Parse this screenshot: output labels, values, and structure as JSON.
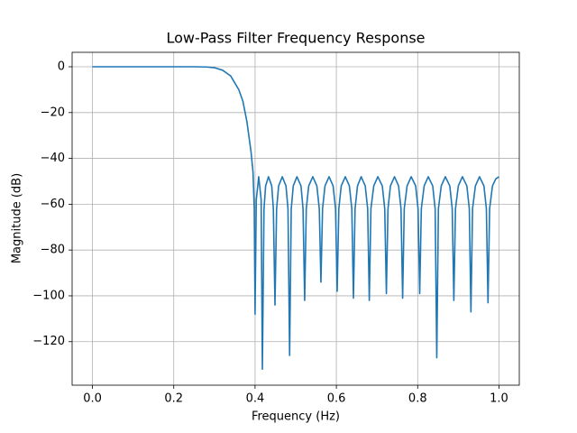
{
  "chart_data": {
    "type": "line",
    "title": "Low-Pass Filter Frequency Response",
    "xlabel": "Frequency (Hz)",
    "ylabel": "Magnitude (dB)",
    "x": [
      0,
      0.05,
      0.1,
      0.15,
      0.2,
      0.25,
      0.28,
      0.3,
      0.32,
      0.34,
      0.36,
      0.37,
      0.38,
      0.39,
      0.395,
      0.398,
      0.4,
      0.403,
      0.409,
      0.415,
      0.418,
      0.422,
      0.426,
      0.433,
      0.441,
      0.445,
      0.449,
      0.453,
      0.458,
      0.467,
      0.476,
      0.481,
      0.485,
      0.489,
      0.494,
      0.503,
      0.513,
      0.518,
      0.522,
      0.526,
      0.532,
      0.542,
      0.552,
      0.558,
      0.562,
      0.566,
      0.572,
      0.582,
      0.592,
      0.598,
      0.602,
      0.606,
      0.612,
      0.622,
      0.632,
      0.638,
      0.642,
      0.646,
      0.652,
      0.661,
      0.671,
      0.677,
      0.681,
      0.685,
      0.692,
      0.702,
      0.713,
      0.719,
      0.723,
      0.727,
      0.733,
      0.743,
      0.753,
      0.759,
      0.763,
      0.767,
      0.774,
      0.784,
      0.795,
      0.801,
      0.805,
      0.809,
      0.816,
      0.826,
      0.837,
      0.843,
      0.847,
      0.851,
      0.858,
      0.868,
      0.879,
      0.885,
      0.889,
      0.893,
      0.9,
      0.91,
      0.921,
      0.927,
      0.931,
      0.935,
      0.942,
      0.952,
      0.963,
      0.969,
      0.973,
      0.977,
      0.984,
      0.992,
      1.0
    ],
    "series": [
      {
        "color": "#1f77b4",
        "values": [
          0,
          0,
          0,
          0,
          0,
          0,
          -0.1,
          -0.4,
          -1.5,
          -4,
          -10,
          -15,
          -24,
          -37,
          -46,
          -62,
          -108,
          -58,
          -48,
          -58,
          -132,
          -62,
          -52,
          -48,
          -52,
          -62,
          -104,
          -62,
          -52,
          -48,
          -52,
          -62,
          -126,
          -62,
          -52,
          -48,
          -52,
          -62,
          -102,
          -62,
          -52,
          -48,
          -52,
          -62,
          -94,
          -62,
          -52,
          -48,
          -52,
          -62,
          -98,
          -62,
          -52,
          -48,
          -52,
          -62,
          -101,
          -62,
          -52,
          -48,
          -52,
          -62,
          -102,
          -62,
          -52,
          -48,
          -52,
          -62,
          -99,
          -62,
          -52,
          -48,
          -52,
          -62,
          -101,
          -62,
          -52,
          -48,
          -52,
          -62,
          -99,
          -62,
          -52,
          -48,
          -52,
          -62,
          -127,
          -62,
          -52,
          -48,
          -52,
          -62,
          -102,
          -62,
          -52,
          -48,
          -52,
          -62,
          -107,
          -62,
          -52,
          -48,
          -52,
          -62,
          -103,
          -62,
          -52,
          -49,
          -48
        ]
      }
    ],
    "xlim": [
      -0.05,
      1.05
    ],
    "xticks": [
      {
        "value": 0,
        "label": "0.0"
      },
      0.2,
      0.4,
      0.6,
      0.8,
      {
        "value": 1,
        "label": "1.0"
      }
    ],
    "ylim": [
      -139,
      6.3
    ],
    "yticks": [
      0,
      {
        "value": -20,
        "label": "−20"
      },
      {
        "value": -40,
        "label": "−40"
      },
      {
        "value": -60,
        "label": "−60"
      },
      {
        "value": -80,
        "label": "−80"
      },
      {
        "value": -100,
        "label": "−100"
      },
      {
        "value": -120,
        "label": "−120"
      }
    ],
    "grid": true
  }
}
